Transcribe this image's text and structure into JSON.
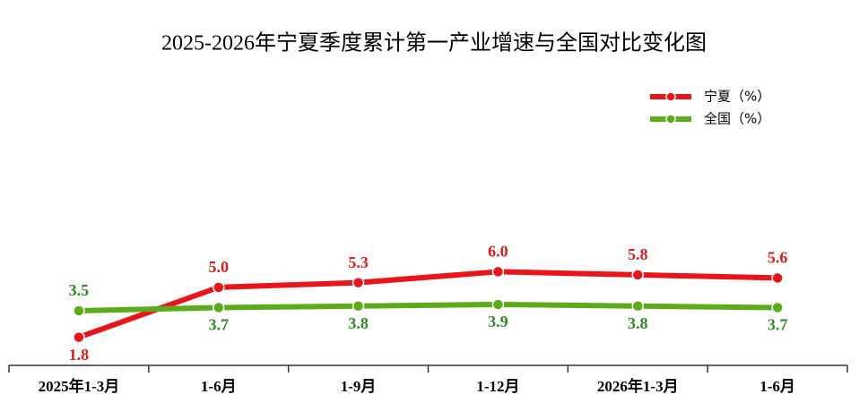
{
  "chart_data": {
    "type": "line",
    "title": "2025-2026年宁夏季度累计第一产业增速与全国对比变化图",
    "categories": [
      "2025年1-3月",
      "1-6月",
      "1-9月",
      "1-12月",
      "2026年1-3月",
      "1-6月"
    ],
    "series": [
      {
        "name": "宁夏（%）",
        "color": "#e8161b",
        "values": [
          1.8,
          5.0,
          5.3,
          6.0,
          5.8,
          5.6
        ],
        "value_labels": [
          "1.8",
          "5.0",
          "5.3",
          "6.0",
          "5.8",
          "5.6"
        ]
      },
      {
        "name": "全国（%）",
        "color": "#5bab1b",
        "values": [
          3.5,
          3.7,
          3.8,
          3.9,
          3.8,
          3.7
        ],
        "value_labels": [
          "3.5",
          "3.7",
          "3.8",
          "3.9",
          "3.8",
          "3.7"
        ]
      }
    ],
    "ylim": [
      0,
      14
    ],
    "legend": "upper-right"
  }
}
